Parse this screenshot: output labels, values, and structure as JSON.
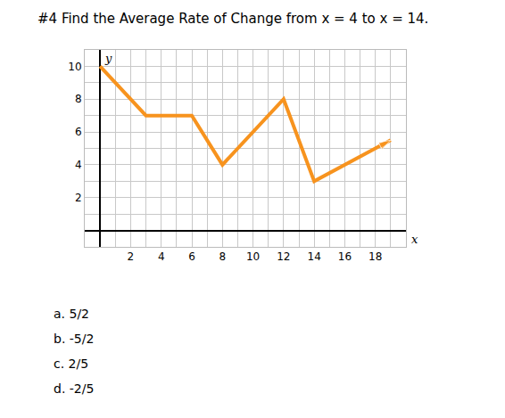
{
  "question": "#4  Find the Average Rate of Change from x = 4 to x = 14.",
  "choices": [
    {
      "letter": "a.",
      "text": "5/2"
    },
    {
      "letter": "b.",
      "text": "-5/2"
    },
    {
      "letter": "c.",
      "text": "2/5"
    },
    {
      "letter": "d.",
      "text": "-2/5"
    }
  ],
  "chart_data": {
    "type": "line",
    "x_label": "x",
    "y_label": "y",
    "x": [
      0,
      3,
      6,
      8,
      12,
      14,
      19
    ],
    "values": [
      10,
      7,
      7,
      4,
      8,
      3,
      5.5
    ],
    "color": "#f7931e",
    "marker": "arrow",
    "xlim": [
      -1,
      20
    ],
    "ylim": [
      -1,
      11
    ],
    "xticks": [
      2,
      4,
      6,
      8,
      10,
      12,
      14,
      16,
      18
    ],
    "yticks": [
      2,
      4,
      6,
      8,
      10
    ],
    "grid": true
  }
}
